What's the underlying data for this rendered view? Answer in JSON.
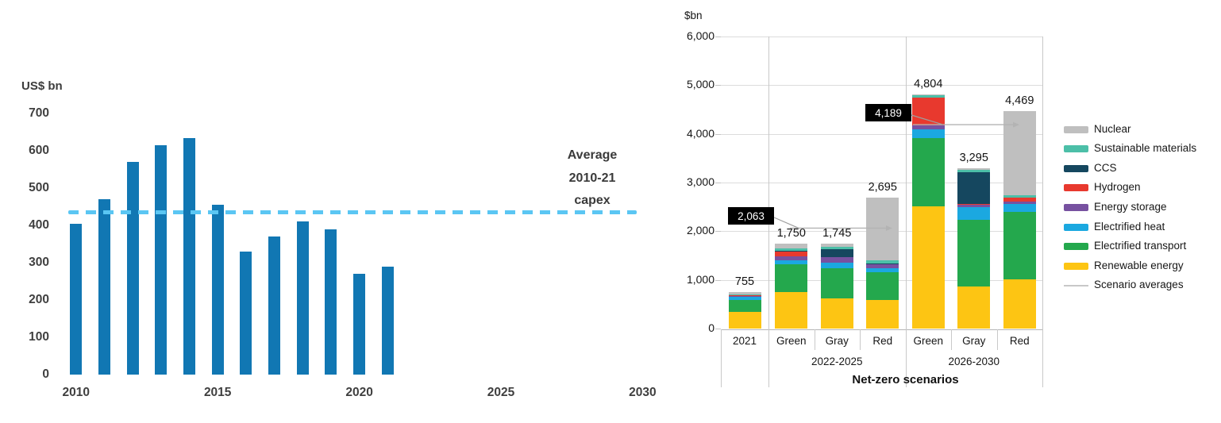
{
  "chart_data": [
    {
      "id": "historical-capex",
      "type": "bar",
      "axis_title": "US$ bn",
      "ylim": [
        0,
        700
      ],
      "y_ticks": [
        0,
        100,
        200,
        300,
        400,
        500,
        600,
        700
      ],
      "x_ticks": [
        2010,
        2015,
        2020,
        2025,
        2030
      ],
      "categories": [
        2010,
        2011,
        2012,
        2013,
        2014,
        2015,
        2016,
        2017,
        2018,
        2019,
        2020,
        2021
      ],
      "values": [
        405,
        470,
        570,
        615,
        635,
        455,
        330,
        370,
        410,
        390,
        270,
        290
      ],
      "bar_color": "#1177b3",
      "grid": false,
      "average_line": {
        "value": 435,
        "style": "dashed",
        "color": "#5bc6f3",
        "label_lines": [
          "Average",
          "2010-21",
          "capex"
        ]
      }
    },
    {
      "id": "net-zero-investment",
      "type": "stacked-bar",
      "axis_title": "$bn",
      "ylim": [
        0,
        6000
      ],
      "y_ticks": [
        "0",
        "1,000",
        "2,000",
        "3,000",
        "4,000",
        "5,000",
        "6,000"
      ],
      "x_axis_title": "Net-zero scenarios",
      "grid": true,
      "legend_position": "right",
      "series_order_bottom_to_top": [
        "Renewable energy",
        "Electrified transport",
        "Electrified heat",
        "Energy storage",
        "Hydrogen",
        "CCS",
        "Sustainable materials",
        "Nuclear"
      ],
      "colors": {
        "Renewable energy": "#fdc513",
        "Electrified transport": "#24a84d",
        "Electrified heat": "#1ba8e0",
        "Energy storage": "#7751a0",
        "Hydrogen": "#e8392e",
        "CCS": "#15475f",
        "Sustainable materials": "#4cbfa8",
        "Nuclear": "#bfbfbf",
        "scenario_average_line": "#b3b3b3"
      },
      "groups": [
        {
          "label": "",
          "bars": [
            {
              "label": "2021",
              "total": 755,
              "total_label": "755",
              "segments": {
                "Renewable energy": 345,
                "Electrified transport": 245,
                "Electrified heat": 65,
                "Energy storage": 20,
                "Hydrogen": 5,
                "CCS": 5,
                "Sustainable materials": 10,
                "Nuclear": 60
              }
            }
          ]
        },
        {
          "label": "2022-2025",
          "bars": [
            {
              "label": "Green",
              "total": 1750,
              "total_label": "1,750",
              "segments": {
                "Renewable energy": 750,
                "Electrified transport": 570,
                "Electrified heat": 85,
                "Energy storage": 85,
                "Hydrogen": 95,
                "CCS": 15,
                "Sustainable materials": 45,
                "Nuclear": 105
              }
            },
            {
              "label": "Gray",
              "total": 1745,
              "total_label": "1,745",
              "segments": {
                "Renewable energy": 615,
                "Electrified transport": 630,
                "Electrified heat": 105,
                "Energy storage": 110,
                "Hydrogen": 5,
                "CCS": 165,
                "Sustainable materials": 50,
                "Nuclear": 65
              }
            },
            {
              "label": "Red",
              "total": 2695,
              "total_label": "2,695",
              "segments": {
                "Renewable energy": 585,
                "Electrified transport": 575,
                "Electrified heat": 80,
                "Energy storage": 80,
                "Hydrogen": 5,
                "CCS": 5,
                "Sustainable materials": 80,
                "Nuclear": 1285
              }
            }
          ]
        },
        {
          "label": "2026-2030",
          "bars": [
            {
              "label": "Green",
              "total": 4804,
              "total_label": "4,804",
              "segments": {
                "Renewable energy": 2510,
                "Electrified transport": 1410,
                "Electrified heat": 180,
                "Energy storage": 70,
                "Hydrogen": 575,
                "CCS": 0,
                "Sustainable materials": 45,
                "Nuclear": 14
              }
            },
            {
              "label": "Gray",
              "total": 3295,
              "total_label": "3,295",
              "segments": {
                "Renewable energy": 870,
                "Electrified transport": 1360,
                "Electrified heat": 260,
                "Energy storage": 60,
                "Hydrogen": 10,
                "CCS": 650,
                "Sustainable materials": 45,
                "Nuclear": 40
              }
            },
            {
              "label": "Red",
              "total": 4469,
              "total_label": "4,469",
              "segments": {
                "Renewable energy": 1015,
                "Electrified transport": 1380,
                "Electrified heat": 165,
                "Energy storage": 50,
                "Hydrogen": 75,
                "CCS": 10,
                "Sustainable materials": 50,
                "Nuclear": 1724
              }
            }
          ]
        }
      ],
      "scenario_averages": [
        {
          "group": "2022-2025",
          "value": 2063,
          "label": "2,063"
        },
        {
          "group": "2026-2030",
          "value": 4189,
          "label": "4,189"
        }
      ],
      "legend": [
        {
          "label": "Nuclear",
          "color": "#bfbfbf",
          "type": "swatch"
        },
        {
          "label": "Sustainable materials",
          "color": "#4cbfa8",
          "type": "swatch"
        },
        {
          "label": "CCS",
          "color": "#15475f",
          "type": "swatch"
        },
        {
          "label": "Hydrogen",
          "color": "#e8392e",
          "type": "swatch"
        },
        {
          "label": "Energy storage",
          "color": "#7751a0",
          "type": "swatch"
        },
        {
          "label": "Electrified heat",
          "color": "#1ba8e0",
          "type": "swatch"
        },
        {
          "label": "Electrified transport",
          "color": "#24a84d",
          "type": "swatch"
        },
        {
          "label": "Renewable energy",
          "color": "#fdc513",
          "type": "swatch"
        },
        {
          "label": "Scenario averages",
          "color": "#c8c8c8",
          "type": "line"
        }
      ]
    }
  ]
}
